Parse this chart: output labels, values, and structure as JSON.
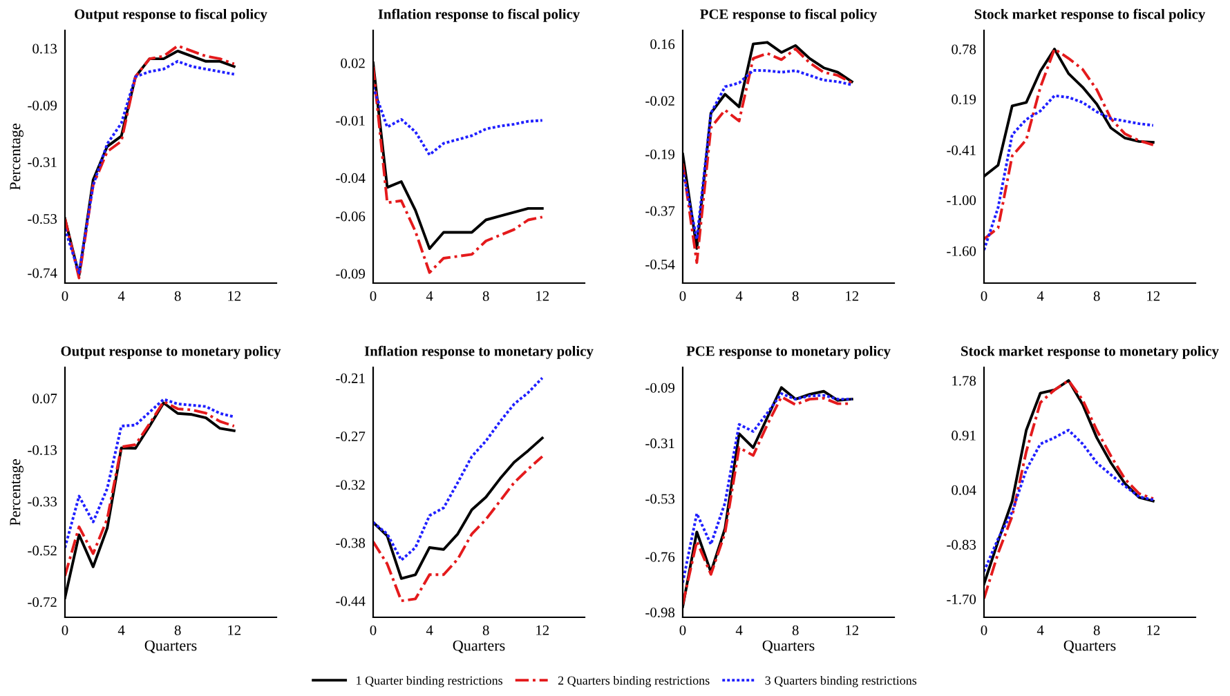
{
  "chart_data": [
    {
      "type": "line",
      "title": "Output response to fiscal policy",
      "ylabel": "Percentage",
      "legend": "bottom",
      "xlim": [
        0,
        15
      ],
      "xticks": [
        0,
        4,
        8,
        12
      ],
      "ylim": [
        -0.78,
        0.2
      ],
      "yticks": [
        -0.74,
        -0.53,
        -0.31,
        -0.09,
        0.13
      ],
      "x": [
        0,
        1,
        2,
        3,
        4,
        5,
        6,
        7,
        8,
        9,
        10,
        11,
        12
      ],
      "series": [
        {
          "name": "1 Quarter binding restrictions",
          "color": "#000000",
          "line_style": "solid",
          "values": [
            -0.53,
            -0.75,
            -0.38,
            -0.25,
            -0.21,
            0.02,
            0.09,
            0.09,
            0.12,
            0.1,
            0.08,
            0.08,
            0.06
          ]
        },
        {
          "name": "2 Quarters binding restrictions",
          "color": "#e41a1c",
          "line_style": "dashed",
          "values": [
            -0.53,
            -0.76,
            -0.4,
            -0.27,
            -0.23,
            0.02,
            0.09,
            0.1,
            0.14,
            0.12,
            0.1,
            0.09,
            0.07
          ]
        },
        {
          "name": "3 Quarters binding restrictions",
          "color": "#1f1fff",
          "line_style": "dotted",
          "values": [
            -0.57,
            -0.74,
            -0.4,
            -0.24,
            -0.16,
            0.02,
            0.04,
            0.05,
            0.08,
            0.06,
            0.05,
            0.04,
            0.03
          ]
        }
      ]
    },
    {
      "type": "line",
      "title": "Inflation response to fiscal policy",
      "xlim": [
        0,
        15
      ],
      "xticks": [
        0,
        4,
        8,
        12
      ],
      "ylim": [
        -0.095,
        0.037
      ],
      "yticks": [
        -0.09,
        -0.06,
        -0.04,
        -0.01,
        0.02
      ],
      "x": [
        0,
        1,
        2,
        3,
        4,
        5,
        6,
        7,
        8,
        9,
        10,
        11,
        12
      ],
      "series": [
        {
          "color": "#000000",
          "line_style": "solid",
          "values": [
            0.02,
            -0.045,
            -0.042,
            -0.057,
            -0.077,
            -0.0685,
            -0.0685,
            -0.0685,
            -0.062,
            -0.06,
            -0.058,
            -0.056,
            -0.056
          ]
        },
        {
          "color": "#e41a1c",
          "line_style": "dashed",
          "values": [
            0.018,
            -0.053,
            -0.052,
            -0.068,
            -0.0895,
            -0.082,
            -0.081,
            -0.08,
            -0.073,
            -0.07,
            -0.067,
            -0.062,
            -0.0605
          ]
        },
        {
          "color": "#1f1fff",
          "line_style": "dotted",
          "values": [
            0.0074,
            -0.0135,
            -0.0095,
            -0.016,
            -0.028,
            -0.022,
            -0.02,
            -0.018,
            -0.0145,
            -0.013,
            -0.012,
            -0.0105,
            -0.01
          ]
        }
      ]
    },
    {
      "type": "line",
      "title": "PCE response to fiscal policy",
      "xlim": [
        0,
        15
      ],
      "xticks": [
        0,
        4,
        8,
        12
      ],
      "ylim": [
        -0.6,
        0.203
      ],
      "yticks": [
        -0.54,
        -0.37,
        -0.19,
        -0.02,
        0.16
      ],
      "x": [
        0,
        1,
        2,
        3,
        4,
        5,
        6,
        7,
        8,
        9,
        10,
        11,
        12
      ],
      "series": [
        {
          "color": "#000000",
          "line_style": "solid",
          "values": [
            -0.19,
            -0.49,
            -0.06,
            0.0,
            -0.04,
            0.16,
            0.165,
            0.133,
            0.155,
            0.114,
            0.084,
            0.07,
            0.04
          ]
        },
        {
          "color": "#e41a1c",
          "line_style": "dashed",
          "values": [
            -0.22,
            -0.535,
            -0.106,
            -0.05,
            -0.085,
            0.114,
            0.13,
            0.11,
            0.144,
            0.1,
            0.07,
            0.06,
            0.036
          ]
        },
        {
          "color": "#1f1fff",
          "line_style": "dotted",
          "values": [
            -0.24,
            -0.46,
            -0.06,
            0.024,
            0.036,
            0.076,
            0.075,
            0.07,
            0.075,
            0.06,
            0.045,
            0.04,
            0.03
          ]
        }
      ]
    },
    {
      "type": "line",
      "title": "Stock market response to fiscal policy",
      "xlim": [
        0,
        15
      ],
      "xticks": [
        0,
        4,
        8,
        12
      ],
      "ylim": [
        -1.98,
        1.0
      ],
      "yticks": [
        {
          "value": -1.6,
          "label": "-1.60"
        },
        {
          "value": -1.0,
          "label": "-1.00"
        },
        -0.41,
        0.19,
        0.78
      ],
      "x": [
        0,
        1,
        2,
        3,
        4,
        5,
        6,
        7,
        8,
        9,
        10,
        11,
        12
      ],
      "series": [
        {
          "color": "#000000",
          "line_style": "solid",
          "values": [
            -0.72,
            -0.59,
            0.11,
            0.15,
            0.52,
            0.78,
            0.49,
            0.33,
            0.13,
            -0.15,
            -0.27,
            -0.31,
            -0.32
          ]
        },
        {
          "color": "#e41a1c",
          "line_style": "dashed",
          "values": [
            -1.46,
            -1.33,
            -0.48,
            -0.29,
            0.33,
            0.78,
            0.67,
            0.54,
            0.3,
            -0.04,
            -0.22,
            -0.3,
            -0.35
          ]
        },
        {
          "color": "#1f1fff",
          "line_style": "dotted",
          "values": [
            -1.59,
            -1.09,
            -0.23,
            -0.05,
            0.05,
            0.23,
            0.21,
            0.15,
            0.04,
            -0.04,
            -0.07,
            -0.1,
            -0.12
          ]
        }
      ]
    },
    {
      "type": "line",
      "title": "Output response to monetary policy",
      "ylabel": "Percentage",
      "xlabel": "Quarters",
      "xlim": [
        0,
        15
      ],
      "xticks": [
        0,
        4,
        8,
        12
      ],
      "ylim": [
        -0.78,
        0.19
      ],
      "yticks": [
        -0.72,
        -0.52,
        -0.33,
        -0.13,
        0.07
      ],
      "x": [
        0,
        1,
        2,
        3,
        4,
        5,
        6,
        7,
        8,
        9,
        10,
        11,
        12
      ],
      "series": [
        {
          "color": "#000000",
          "line_style": "solid",
          "values": [
            -0.704,
            -0.46,
            -0.584,
            -0.434,
            -0.123,
            -0.124,
            -0.038,
            0.052,
            0.011,
            0.007,
            -0.006,
            -0.047,
            -0.056
          ]
        },
        {
          "color": "#e41a1c",
          "line_style": "dashed",
          "values": [
            -0.619,
            -0.429,
            -0.533,
            -0.398,
            -0.119,
            -0.11,
            -0.029,
            0.057,
            0.029,
            0.025,
            0.012,
            -0.02,
            -0.038
          ]
        },
        {
          "color": "#1f1fff",
          "line_style": "dotted",
          "values": [
            -0.51,
            -0.31,
            -0.41,
            -0.28,
            -0.038,
            -0.034,
            0.016,
            0.066,
            0.048,
            0.043,
            0.038,
            0.011,
            -0.002
          ]
        }
      ]
    },
    {
      "type": "line",
      "title": "Inflation response to monetary policy",
      "xlabel": "Quarters",
      "xlim": [
        0,
        15
      ],
      "xticks": [
        0,
        4,
        8,
        12
      ],
      "ylim": [
        -0.457,
        -0.199
      ],
      "yticks": [
        -0.44,
        -0.38,
        -0.32,
        -0.27,
        -0.21
      ],
      "x": [
        0,
        1,
        2,
        3,
        4,
        5,
        6,
        7,
        8,
        9,
        10,
        11,
        12
      ],
      "series": [
        {
          "color": "#000000",
          "line_style": "solid",
          "values": [
            -0.359,
            -0.373,
            -0.417,
            -0.413,
            -0.385,
            -0.387,
            -0.371,
            -0.346,
            -0.333,
            -0.314,
            -0.297,
            -0.285,
            -0.272
          ]
        },
        {
          "color": "#e41a1c",
          "line_style": "dashed",
          "values": [
            -0.379,
            -0.402,
            -0.44,
            -0.438,
            -0.413,
            -0.413,
            -0.397,
            -0.371,
            -0.356,
            -0.337,
            -0.318,
            -0.304,
            -0.291
          ]
        },
        {
          "color": "#1f1fff",
          "line_style": "dotted",
          "values": [
            -0.359,
            -0.371,
            -0.398,
            -0.385,
            -0.352,
            -0.344,
            -0.318,
            -0.291,
            -0.275,
            -0.255,
            -0.237,
            -0.225,
            -0.21
          ]
        }
      ]
    },
    {
      "type": "line",
      "title": "PCE response to monetary policy",
      "xlabel": "Quarters",
      "xlim": [
        0,
        15
      ],
      "xticks": [
        0,
        4,
        8,
        12
      ],
      "ylim": [
        -1.0,
        -0.01
      ],
      "yticks": [
        -0.98,
        -0.76,
        -0.53,
        -0.31,
        -0.09
      ],
      "x": [
        0,
        1,
        2,
        3,
        4,
        5,
        6,
        7,
        8,
        9,
        10,
        11,
        12
      ],
      "series": [
        {
          "color": "#000000",
          "line_style": "solid",
          "values": [
            -0.958,
            -0.662,
            -0.821,
            -0.648,
            -0.273,
            -0.328,
            -0.209,
            -0.09,
            -0.136,
            -0.117,
            -0.105,
            -0.141,
            -0.136
          ]
        },
        {
          "color": "#e41a1c",
          "line_style": "dashed",
          "values": [
            -0.949,
            -0.699,
            -0.83,
            -0.666,
            -0.328,
            -0.359,
            -0.237,
            -0.127,
            -0.158,
            -0.136,
            -0.132,
            -0.154,
            -0.154
          ]
        },
        {
          "color": "#1f1fff",
          "line_style": "dotted",
          "values": [
            -0.863,
            -0.589,
            -0.711,
            -0.547,
            -0.236,
            -0.264,
            -0.191,
            -0.114,
            -0.136,
            -0.123,
            -0.121,
            -0.136,
            -0.136
          ]
        }
      ]
    },
    {
      "type": "line",
      "title": "Stock market response to monetary policy",
      "xlabel": "Quarters",
      "xlim": [
        0,
        15
      ],
      "xticks": [
        0,
        4,
        8,
        12
      ],
      "ylim": [
        -1.99,
        1.99
      ],
      "yticks": [
        {
          "value": -1.7,
          "label": "-1.70"
        },
        -0.83,
        0.04,
        0.91,
        1.78
      ],
      "x": [
        0,
        1,
        2,
        3,
        4,
        5,
        6,
        7,
        8,
        9,
        10,
        11,
        12
      ],
      "series": [
        {
          "color": "#000000",
          "line_style": "solid",
          "values": [
            -1.46,
            -0.78,
            -0.14,
            0.99,
            1.58,
            1.63,
            1.78,
            1.4,
            0.87,
            0.47,
            0.14,
            -0.08,
            -0.14
          ]
        },
        {
          "color": "#e41a1c",
          "line_style": "dashed",
          "values": [
            -1.69,
            -0.97,
            -0.38,
            0.65,
            1.43,
            1.63,
            1.78,
            1.47,
            0.99,
            0.58,
            0.21,
            -0.02,
            -0.1
          ]
        },
        {
          "color": "#1f1fff",
          "line_style": "dotted",
          "values": [
            -1.26,
            -0.74,
            -0.31,
            0.36,
            0.77,
            0.87,
            0.99,
            0.77,
            0.47,
            0.28,
            0.1,
            -0.07,
            -0.12
          ]
        }
      ]
    }
  ]
}
